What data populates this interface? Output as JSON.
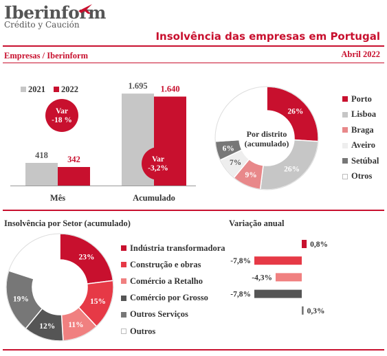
{
  "header": {
    "brand": "Iberinform",
    "brand_sub": "Crédito y Caución",
    "title": "Insolvência das empresas em Portugal",
    "source": "Empresas / Iberinform",
    "period": "Abril 2022"
  },
  "colors": {
    "red": "#c8102e",
    "grey": "#c6c6c6",
    "dark_grey": "#777777",
    "slate": "#555555",
    "pink": "#e8888a",
    "light": "#eeeeee",
    "white": "#ffffff"
  },
  "chart_data": [
    {
      "type": "bar",
      "categories": [
        "Mês",
        "Acumulado"
      ],
      "series": [
        {
          "name": "2021",
          "values": [
            418,
            1695
          ],
          "labels": [
            "418",
            "1.695"
          ]
        },
        {
          "name": "2022",
          "values": [
            342,
            1640
          ],
          "labels": [
            "342",
            "1.640"
          ]
        }
      ],
      "annotations": [
        {
          "line1": "Var",
          "line2": "-18 %"
        },
        {
          "line1": "Var",
          "line2": "-3,2%"
        }
      ],
      "ylim": [
        0,
        1900
      ]
    },
    {
      "type": "pie",
      "center_label": [
        "Por distrito",
        "(acumulado)"
      ],
      "slices": [
        {
          "name": "Porto",
          "value": 26,
          "label": "26%"
        },
        {
          "name": "Lisboa",
          "value": 26,
          "label": "26%"
        },
        {
          "name": "Braga",
          "value": 9,
          "label": "9%"
        },
        {
          "name": "Aveiro",
          "value": 7,
          "label": "7%"
        },
        {
          "name": "Setúbal",
          "value": 6,
          "label": "6%"
        },
        {
          "name": "Otros",
          "value": 26,
          "label": ""
        }
      ]
    },
    {
      "type": "pie",
      "title": "Insolvência por Setor (acumulado)",
      "slices": [
        {
          "name": "Indústria transformadora",
          "value": 23,
          "label": "23%"
        },
        {
          "name": "Construção e obras",
          "value": 15,
          "label": "15%"
        },
        {
          "name": "Comércio a Retalho",
          "value": 11,
          "label": "11%"
        },
        {
          "name": "Comércio por Grosso",
          "value": 12,
          "label": "12%"
        },
        {
          "name": "Outros Serviços",
          "value": 19,
          "label": "19%"
        },
        {
          "name": "Outros",
          "value": 20,
          "label": ""
        }
      ]
    },
    {
      "type": "bar",
      "title": "Variação anual",
      "categories": [
        "Indústria transformadora",
        "Construção e obras",
        "Comércio a Retalho",
        "Comércio por Grosso",
        "Outros Serviços"
      ],
      "values": [
        0.8,
        -7.8,
        -4.3,
        -7.8,
        0.3
      ],
      "labels": [
        "0,8%",
        "-7,8%",
        "-4,3%",
        "-7,8%",
        "0,3%"
      ]
    }
  ]
}
